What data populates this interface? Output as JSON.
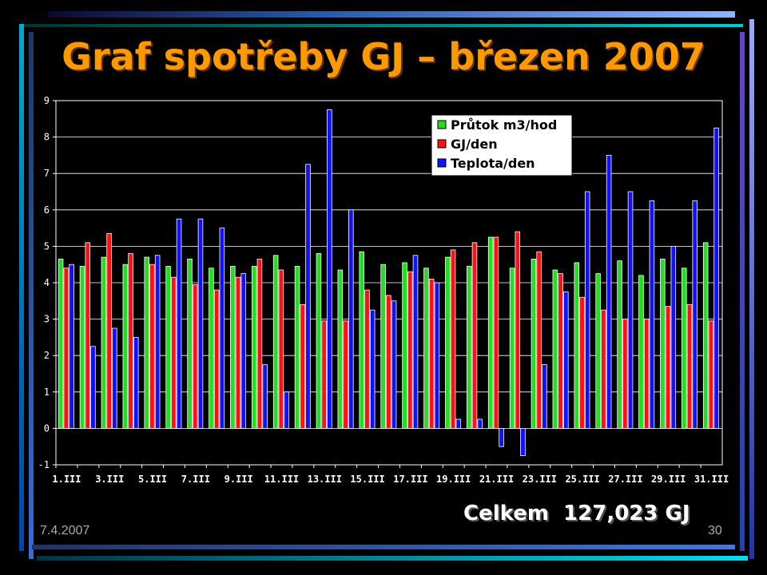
{
  "slide": {
    "title": "Graf spotřeby GJ – březen 2007",
    "total": "Celkem  127,023 GJ",
    "date": "7.4.2007",
    "page": "30"
  },
  "colors": {
    "background": "#000000",
    "title": "#ff9900",
    "plot_background": "#000000",
    "series": [
      "#22dd22",
      "#ff1111",
      "#1111ff"
    ]
  },
  "chart_data": {
    "type": "bar",
    "ylim": [
      -1,
      9
    ],
    "yticks": [
      -1,
      0,
      1,
      2,
      3,
      4,
      5,
      6,
      7,
      8,
      9
    ],
    "grid": true,
    "legend_position": "top-right",
    "categories": [
      "1.III",
      "2.III",
      "3.III",
      "4.III",
      "5.III",
      "6.III",
      "7.III",
      "8.III",
      "9.III",
      "10.III",
      "11.III",
      "12.III",
      "13.III",
      "14.III",
      "15.III",
      "16.III",
      "17.III",
      "18.III",
      "19.III",
      "20.III",
      "21.III",
      "22.III",
      "23.III",
      "24.III",
      "25.III",
      "26.III",
      "27.III",
      "28.III",
      "29.III",
      "30.III",
      "31.III"
    ],
    "xtick_labels": [
      "1.III",
      "3.III",
      "5.III",
      "7.III",
      "9.III",
      "11.III",
      "13.III",
      "15.III",
      "17.III",
      "19.III",
      "21.III",
      "23.III",
      "25.III",
      "27.III",
      "29.III",
      "31.III"
    ],
    "series": [
      {
        "name": "Průtok m3/hod",
        "values": [
          4.65,
          4.45,
          4.7,
          4.5,
          4.7,
          4.45,
          4.65,
          4.4,
          4.45,
          4.45,
          4.75,
          4.45,
          4.8,
          4.35,
          4.85,
          4.5,
          4.55,
          4.4,
          4.7,
          4.45,
          5.25,
          4.4,
          4.65,
          4.35,
          4.55,
          4.25,
          4.6,
          4.2,
          4.65,
          4.4,
          5.1
        ]
      },
      {
        "name": "GJ/den",
        "values": [
          4.4,
          5.1,
          5.35,
          4.8,
          4.5,
          4.15,
          3.95,
          3.8,
          4.15,
          4.65,
          4.35,
          3.4,
          2.95,
          2.95,
          3.8,
          3.65,
          4.3,
          4.1,
          4.9,
          5.1,
          5.25,
          5.4,
          4.85,
          4.25,
          3.6,
          3.25,
          3.0,
          3.0,
          3.35,
          3.4,
          2.95
        ]
      },
      {
        "name": "Teplota/den",
        "values": [
          4.5,
          2.25,
          2.75,
          2.5,
          4.75,
          5.75,
          5.75,
          5.5,
          4.25,
          1.75,
          1.0,
          7.25,
          8.75,
          6.0,
          3.25,
          3.5,
          4.75,
          4.0,
          0.25,
          0.25,
          -0.5,
          -0.75,
          1.75,
          3.75,
          6.5,
          7.5,
          6.5,
          6.25,
          5.0,
          6.25,
          8.25
        ]
      }
    ]
  }
}
